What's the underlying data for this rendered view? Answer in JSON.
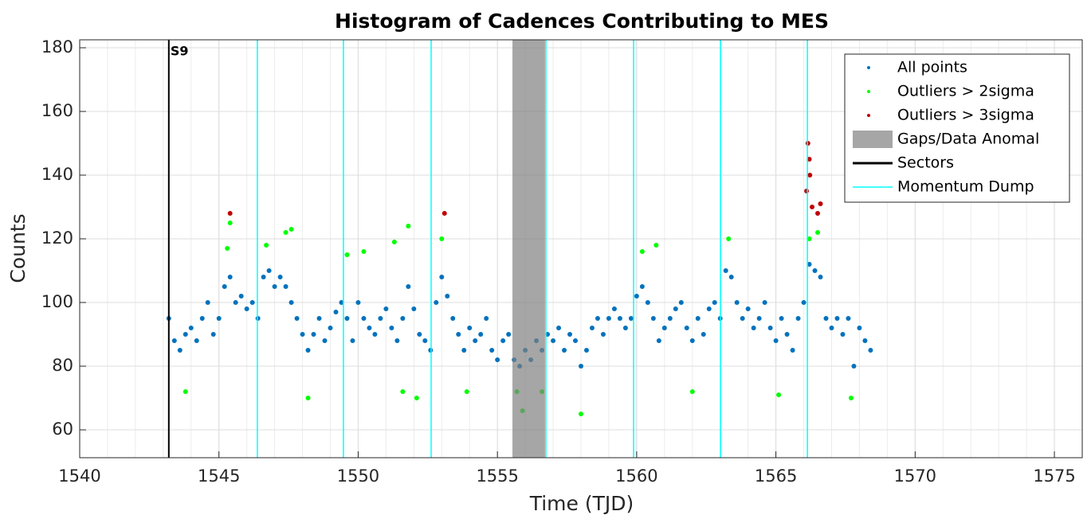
{
  "chart_data": {
    "type": "scatter",
    "title": "Histogram of Cadences Contributing to MES",
    "xlabel": "Time (TJD)",
    "ylabel": "Counts",
    "xlim": [
      1540,
      1576
    ],
    "ylim": [
      51.25,
      182.5
    ],
    "xticks": [
      1540,
      1545,
      1550,
      1555,
      1560,
      1565,
      1570,
      1575
    ],
    "yticks": [
      60,
      80,
      100,
      120,
      140,
      160,
      180
    ],
    "grid": true,
    "minor_grid": true,
    "legend": "upper right",
    "series": [
      {
        "name": "All points",
        "color": "#0072bd",
        "x": [
          1543.2,
          1543.4,
          1543.6,
          1543.8,
          1544,
          1544.2,
          1544.4,
          1544.6,
          1544.8,
          1545,
          1545.2,
          1545.4,
          1545.6,
          1545.8,
          1546,
          1546.2,
          1546.4,
          1546.6,
          1546.8,
          1547,
          1547.2,
          1547.4,
          1547.6,
          1547.8,
          1548,
          1548.2,
          1548.4,
          1548.6,
          1548.8,
          1549,
          1549.2,
          1549.4,
          1549.6,
          1549.8,
          1550,
          1550.2,
          1550.4,
          1550.6,
          1550.8,
          1551,
          1551.2,
          1551.4,
          1551.6,
          1551.8,
          1552,
          1552.2,
          1552.4,
          1552.6,
          1552.8,
          1553,
          1553.2,
          1553.4,
          1553.6,
          1553.8,
          1554,
          1554.2,
          1554.4,
          1554.6,
          1554.8,
          1555,
          1555.2,
          1555.4,
          1555.6,
          1555.8,
          1556,
          1556.2,
          1556.4,
          1556.6,
          1556.8,
          1557,
          1557.2,
          1557.4,
          1557.6,
          1557.8,
          1558,
          1558.2,
          1558.4,
          1558.6,
          1558.8,
          1559,
          1559.2,
          1559.4,
          1559.6,
          1559.8,
          1560,
          1560.2,
          1560.4,
          1560.6,
          1560.8,
          1561,
          1561.2,
          1561.4,
          1561.6,
          1561.8,
          1562,
          1562.2,
          1562.4,
          1562.6,
          1562.8,
          1563,
          1563.2,
          1563.4,
          1563.6,
          1563.8,
          1564,
          1564.2,
          1564.4,
          1564.6,
          1564.8,
          1565,
          1565.2,
          1565.4,
          1565.6,
          1565.8,
          1566,
          1566.2,
          1566.4,
          1566.6,
          1566.8,
          1567,
          1567.2,
          1567.4,
          1567.6,
          1567.8,
          1568,
          1568.2,
          1568.4
        ],
        "values": [
          95,
          88,
          85,
          90,
          92,
          88,
          95,
          100,
          90,
          95,
          105,
          108,
          100,
          102,
          98,
          100,
          95,
          108,
          110,
          105,
          108,
          105,
          100,
          95,
          90,
          85,
          90,
          95,
          88,
          92,
          97,
          100,
          95,
          88,
          100,
          95,
          92,
          90,
          95,
          98,
          92,
          88,
          95,
          105,
          98,
          90,
          88,
          85,
          100,
          108,
          102,
          95,
          90,
          85,
          92,
          88,
          90,
          95,
          85,
          82,
          88,
          90,
          82,
          80,
          85,
          82,
          88,
          85,
          90,
          88,
          92,
          85,
          90,
          88,
          80,
          85,
          92,
          95,
          90,
          95,
          98,
          95,
          92,
          95,
          102,
          105,
          100,
          95,
          88,
          92,
          95,
          98,
          100,
          92,
          88,
          95,
          90,
          98,
          100,
          95,
          110,
          108,
          100,
          95,
          98,
          92,
          95,
          100,
          92,
          88,
          95,
          90,
          85,
          95,
          100,
          112,
          110,
          108,
          95,
          92,
          95,
          90,
          95,
          80,
          92,
          88,
          85
        ]
      },
      {
        "name": "Outliers > 2sigma",
        "color": "#00ff00",
        "x": [
          1543.8,
          1545.3,
          1545.4,
          1546.7,
          1547.4,
          1547.6,
          1548.2,
          1549.6,
          1550.2,
          1551.3,
          1551.6,
          1551.8,
          1552.1,
          1553,
          1553.9,
          1555.7,
          1555.9,
          1556.6,
          1558,
          1560.2,
          1560.7,
          1562,
          1563.3,
          1565.1,
          1566.2,
          1566.5,
          1567.7
        ],
        "values": [
          72,
          117,
          125,
          118,
          122,
          123,
          70,
          115,
          116,
          119,
          72,
          124,
          70,
          120,
          72,
          72,
          66,
          72,
          65,
          116,
          118,
          72,
          120,
          71,
          120,
          122,
          70
        ]
      },
      {
        "name": "Outliers > 3sigma",
        "color": "#c00000",
        "x": [
          1545.4,
          1553.1,
          1566.15,
          1566.2,
          1566.22,
          1566.1,
          1566.3,
          1566.5,
          1566.6
        ],
        "values": [
          128,
          128,
          150,
          145,
          140,
          135,
          130,
          128,
          131
        ]
      }
    ],
    "gaps": {
      "name": "Gaps/Data Anomal",
      "color": "#808080",
      "ranges": [
        [
          1555.54,
          1556.71
        ]
      ]
    },
    "sectors": {
      "name": "Sectors",
      "color": "#000000",
      "x": [
        1543.2
      ],
      "labels": [
        "S9"
      ]
    },
    "momentum_dumps": {
      "name": "Momentum Dump",
      "color": "#00ffff",
      "x": [
        1546.38,
        1549.47,
        1552.62,
        1556.74,
        1559.89,
        1563.01,
        1566.13
      ]
    }
  }
}
